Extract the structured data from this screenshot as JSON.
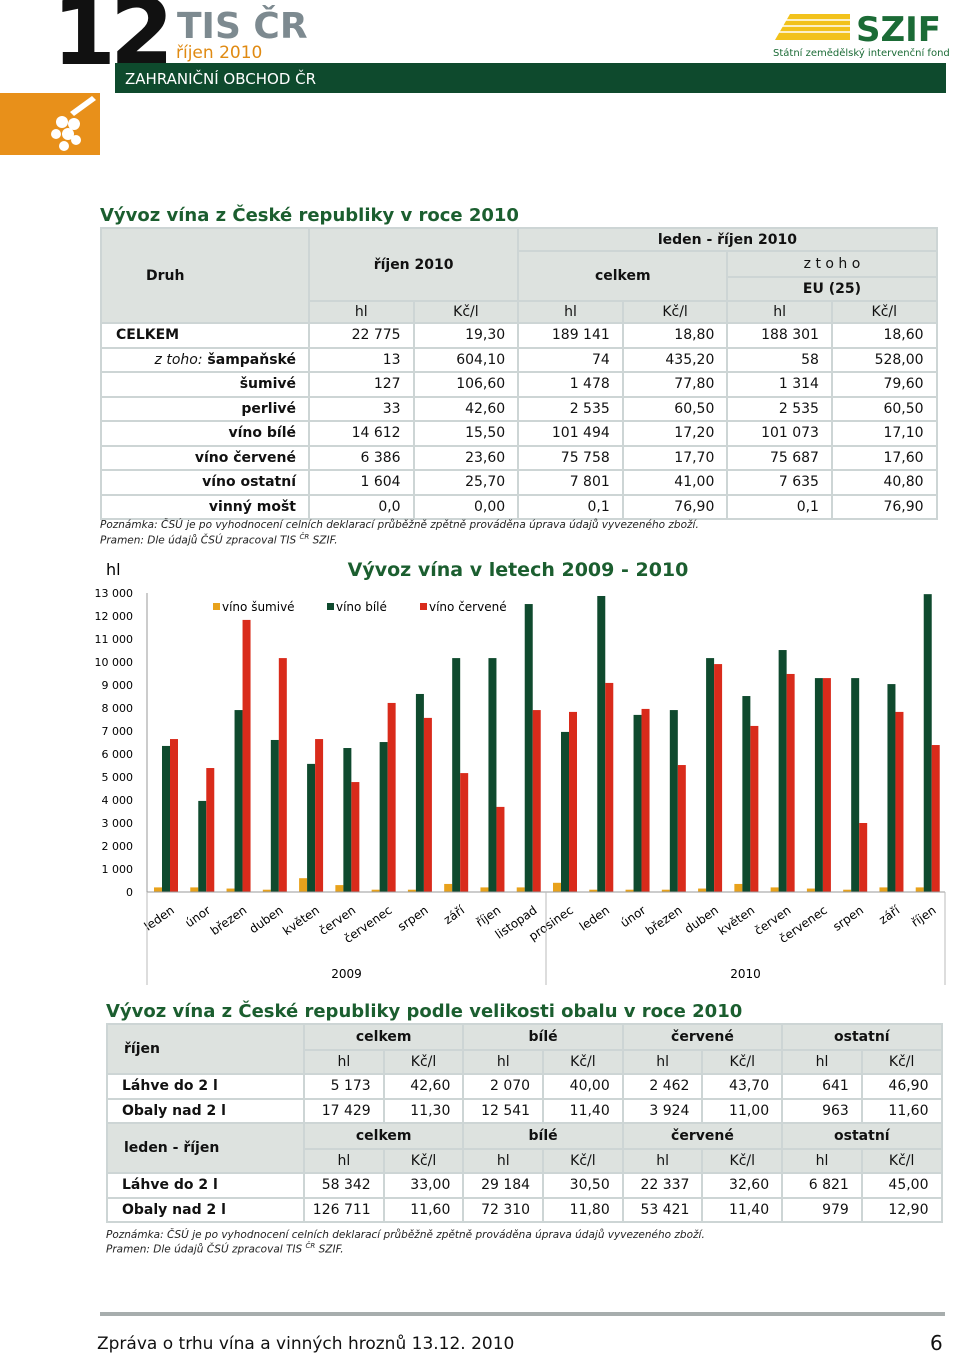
{
  "header": {
    "number": "12",
    "brand": "TIS ČR",
    "issue": "říjen 2010",
    "section": "ZAHRANIČNÍ OBCHOD ČR",
    "logo": "SZIF",
    "logo_sub": "Státní zemědělský intervenční fond"
  },
  "table1": {
    "title": "Vývoz vína z České republiky v roce 2010",
    "druh": "Druh",
    "period1": "říjen 2010",
    "period2": "leden - říjen 2010",
    "total": "celkem",
    "of_which": "z t o h o",
    "eu": "EU (25)",
    "units": [
      "hl",
      "Kč/l",
      "hl",
      "Kč/l",
      "hl",
      "Kč/l"
    ],
    "rows": [
      {
        "label": "CELKEM",
        "values": [
          "22 775",
          "19,30",
          "189 141",
          "18,80",
          "188 301",
          "18,60"
        ]
      },
      {
        "prefix": "z toho:",
        "label": "šampaňské",
        "values": [
          "13",
          "604,10",
          "74",
          "435,20",
          "58",
          "528,00"
        ]
      },
      {
        "label": "šumivé",
        "values": [
          "127",
          "106,60",
          "1 478",
          "77,80",
          "1 314",
          "79,60"
        ]
      },
      {
        "label": "perlivé",
        "values": [
          "33",
          "42,60",
          "2 535",
          "60,50",
          "2 535",
          "60,50"
        ]
      },
      {
        "label": "víno bílé",
        "values": [
          "14 612",
          "15,50",
          "101 494",
          "17,20",
          "101 073",
          "17,10"
        ]
      },
      {
        "label": "víno červené",
        "values": [
          "6 386",
          "23,60",
          "75 758",
          "17,70",
          "75 687",
          "17,60"
        ]
      },
      {
        "label": "víno ostatní",
        "values": [
          "1 604",
          "25,70",
          "7 801",
          "41,00",
          "7 635",
          "40,80"
        ]
      },
      {
        "label": "vinný mošt",
        "values": [
          "0,0",
          "0,00",
          "0,1",
          "76,90",
          "0,1",
          "76,90"
        ]
      }
    ],
    "note": "Poznámka: ČSÚ je po vyhodnocení celních deklarací průběžně zpětně prováděna úprava údajů vyvezeného zboží.",
    "source": [
      "Pramen: Dle údajů ČSÚ zpracoval TIS",
      "ČR",
      "SZIF."
    ]
  },
  "chart_data": {
    "type": "bar",
    "title": "Vývoz vína v letech 2009 - 2010",
    "y_label": "hl",
    "categories": [
      "leden",
      "únor",
      "březen",
      "duben",
      "květen",
      "červen",
      "červenec",
      "srpen",
      "září",
      "říjen",
      "listopad",
      "prosinec",
      "leden",
      "únor",
      "březen",
      "duben",
      "květen",
      "červen",
      "červenec",
      "srpen",
      "září",
      "říjen"
    ],
    "groups": [
      "2009",
      "2010"
    ],
    "series": [
      {
        "name": "víno šumivé",
        "color": "#e8a21c",
        "values": [
          200,
          200,
          150,
          100,
          600,
          300,
          100,
          100,
          350,
          200,
          200,
          400,
          100,
          100,
          100,
          150,
          350,
          200,
          150,
          100,
          200,
          200
        ]
      },
      {
        "name": "víno bílé",
        "color": "#0f4a2e",
        "values": [
          6350,
          3960,
          7910,
          6610,
          5570,
          6260,
          6520,
          8610,
          10170,
          10170,
          12520,
          6960,
          12870,
          7700,
          7910,
          10170,
          8520,
          10520,
          9300,
          9300,
          9040,
          12950
        ]
      },
      {
        "name": "víno červené",
        "color": "#d92b1b",
        "values": [
          6650,
          5390,
          11830,
          10170,
          6650,
          4780,
          8220,
          7570,
          5170,
          3700,
          7910,
          7830,
          9090,
          7960,
          5520,
          9910,
          7220,
          9480,
          9300,
          3000,
          7830,
          6390
        ]
      }
    ],
    "ylim": [
      0,
      13000
    ],
    "yticks": [
      0,
      {
        "value": 1000,
        "label": "1 000"
      },
      {
        "value": 2000,
        "label": "2 000"
      },
      {
        "value": 3000,
        "label": "3 000"
      },
      {
        "value": 4000,
        "label": "4 000"
      },
      {
        "value": 5000,
        "label": "5 000"
      },
      {
        "value": 6000,
        "label": "6 000"
      },
      {
        "value": 7000,
        "label": "7 000"
      },
      {
        "value": 8000,
        "label": "8 000"
      },
      {
        "value": 9000,
        "label": "9 000"
      },
      {
        "value": 10000,
        "label": "10 000"
      },
      {
        "value": 11000,
        "label": "11 000"
      },
      {
        "value": 12000,
        "label": "12 000"
      },
      {
        "value": 13000,
        "label": "13 000"
      }
    ],
    "grid": false,
    "legend": "top"
  },
  "table2": {
    "title": "Vývoz vína z České republiky podle velikosti obalu v roce 2010",
    "sections": [
      {
        "label": "říjen",
        "groups": [
          "celkem",
          "bílé",
          "červené",
          "ostatní"
        ],
        "units": [
          "hl",
          "Kč/l",
          "hl",
          "Kč/l",
          "hl",
          "Kč/l",
          "hl",
          "Kč/l"
        ],
        "rows": [
          {
            "label": "Láhve do 2 l",
            "values": [
              "5 173",
              "42,60",
              "2 070",
              "40,00",
              "2 462",
              "43,70",
              "641",
              "46,90"
            ]
          },
          {
            "label": "Obaly nad 2 l",
            "values": [
              "17 429",
              "11,30",
              "12 541",
              "11,40",
              "3 924",
              "11,00",
              "963",
              "11,60"
            ]
          }
        ]
      },
      {
        "label": "leden - říjen",
        "groups": [
          "celkem",
          "bílé",
          "červené",
          "ostatní"
        ],
        "units": [
          "hl",
          "Kč/l",
          "hl",
          "Kč/l",
          "hl",
          "Kč/l",
          "hl",
          "Kč/l"
        ],
        "rows": [
          {
            "label": "Láhve do 2 l",
            "values": [
              "58 342",
              "33,00",
              "29 184",
              "30,50",
              "22 337",
              "32,60",
              "6 821",
              "45,00"
            ]
          },
          {
            "label": "Obaly nad 2 l",
            "values": [
              "126 711",
              "11,60",
              "72 310",
              "11,80",
              "53 421",
              "11,40",
              "979",
              "12,90"
            ]
          }
        ]
      }
    ],
    "note": "Poznámka: ČSÚ je po vyhodnocení celních deklarací průběžně zpětně prováděna úprava údajů vyvezeného zboží.",
    "source": [
      "Pramen: Dle údajů ČSÚ zpracoval TIS",
      "ČR",
      "SZIF."
    ]
  },
  "footer": {
    "text": "Zpráva o trhu vína a vinných hroznů 13.12. 2010",
    "page": "6"
  }
}
